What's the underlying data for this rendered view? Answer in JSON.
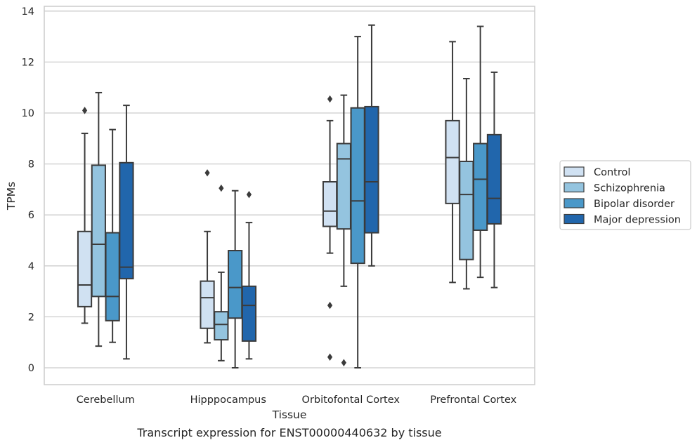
{
  "chart_data": {
    "type": "box",
    "caption": "Transcript expression for ENST00000440632 by tissue",
    "xlabel": "Tissue",
    "ylabel": "TPMs",
    "ylim": [
      -0.6,
      14.15
    ],
    "yticks": [
      0,
      2,
      4,
      6,
      8,
      10,
      12,
      14
    ],
    "grid": true,
    "legend_position": "right",
    "categories": [
      "Cerebellum",
      "Hipppocampus",
      "Orbitofontal Cortex",
      "Prefrontal Cortex"
    ],
    "series": [
      {
        "name": "Control",
        "color": "#d0e1f2",
        "boxes": [
          {
            "whislo": 1.75,
            "q1": 2.4,
            "med": 3.25,
            "q3": 5.35,
            "whishi": 9.2,
            "fliers": [
              10.1
            ]
          },
          {
            "whislo": 0.98,
            "q1": 1.55,
            "med": 2.75,
            "q3": 3.4,
            "whishi": 5.35,
            "fliers": [
              7.65
            ]
          },
          {
            "whislo": 4.5,
            "q1": 5.55,
            "med": 6.15,
            "q3": 7.3,
            "whishi": 9.7,
            "fliers": [
              10.55,
              2.45,
              0.42
            ]
          },
          {
            "whislo": 3.35,
            "q1": 6.45,
            "med": 8.25,
            "q3": 9.7,
            "whishi": 12.8,
            "fliers": []
          }
        ]
      },
      {
        "name": "Schizophrenia",
        "color": "#94c4df",
        "boxes": [
          {
            "whislo": 0.85,
            "q1": 2.8,
            "med": 4.85,
            "q3": 7.95,
            "whishi": 10.8,
            "fliers": []
          },
          {
            "whislo": 0.28,
            "q1": 1.1,
            "med": 1.7,
            "q3": 2.2,
            "whishi": 3.75,
            "fliers": [
              7.05
            ]
          },
          {
            "whislo": 3.2,
            "q1": 5.45,
            "med": 8.2,
            "q3": 8.8,
            "whishi": 10.7,
            "fliers": [
              0.2
            ]
          },
          {
            "whislo": 3.1,
            "q1": 4.25,
            "med": 6.8,
            "q3": 8.1,
            "whishi": 11.35,
            "fliers": []
          }
        ]
      },
      {
        "name": "Bipolar disorder",
        "color": "#4a98c9",
        "boxes": [
          {
            "whislo": 1.0,
            "q1": 1.85,
            "med": 2.8,
            "q3": 5.3,
            "whishi": 9.35,
            "fliers": []
          },
          {
            "whislo": 0.0,
            "q1": 1.95,
            "med": 3.15,
            "q3": 4.6,
            "whishi": 6.95,
            "fliers": []
          },
          {
            "whislo": 0.0,
            "q1": 4.1,
            "med": 6.55,
            "q3": 10.2,
            "whishi": 13.0,
            "fliers": []
          },
          {
            "whislo": 3.55,
            "q1": 5.4,
            "med": 7.4,
            "q3": 8.8,
            "whishi": 13.4,
            "fliers": []
          }
        ]
      },
      {
        "name": "Major depression",
        "color": "#2166ac",
        "boxes": [
          {
            "whislo": 0.35,
            "q1": 3.5,
            "med": 3.95,
            "q3": 8.05,
            "whishi": 10.3,
            "fliers": []
          },
          {
            "whislo": 0.35,
            "q1": 1.05,
            "med": 2.45,
            "q3": 3.2,
            "whishi": 5.7,
            "fliers": [
              6.8
            ]
          },
          {
            "whislo": 4.0,
            "q1": 5.3,
            "med": 7.3,
            "q3": 10.25,
            "whishi": 13.45,
            "fliers": []
          },
          {
            "whislo": 3.15,
            "q1": 5.65,
            "med": 6.65,
            "q3": 9.15,
            "whishi": 11.6,
            "fliers": []
          }
        ]
      }
    ]
  }
}
